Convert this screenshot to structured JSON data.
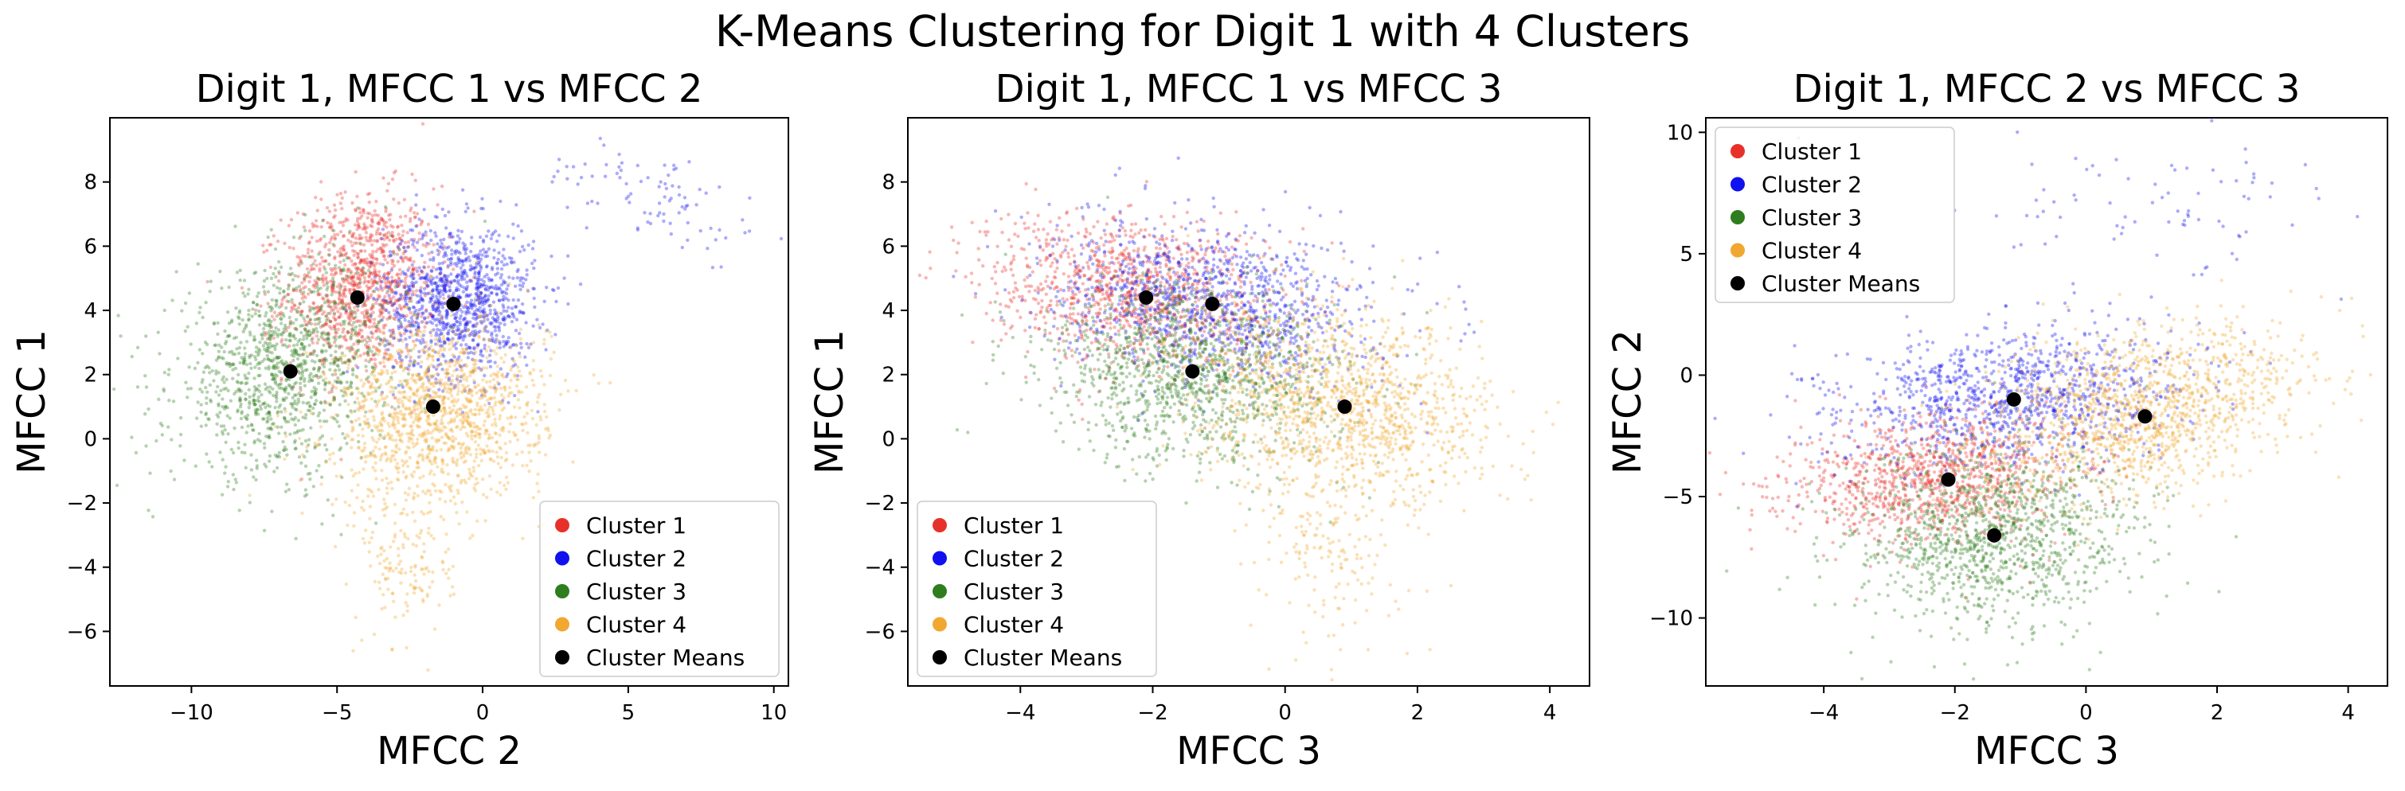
{
  "title": "K-Means Clustering for Digit 1 with 4 Clusters",
  "colors": {
    "cluster1": "#e8302a",
    "cluster2": "#1010f0",
    "cluster3": "#2e7d1e",
    "cluster4": "#f0a830",
    "means": "#000000"
  },
  "legend_labels": [
    "Cluster 1",
    "Cluster 2",
    "Cluster 3",
    "Cluster 4",
    "Cluster Means"
  ],
  "chart_data": [
    {
      "type": "scatter",
      "title": "Digit 1, MFCC 1 vs MFCC 2",
      "xlabel": "MFCC 2",
      "ylabel": "MFCC 1",
      "xlim": [
        -12.8,
        10.5
      ],
      "ylim": [
        -7.7,
        10.0
      ],
      "xticks": [
        -10,
        -5,
        0,
        5,
        10
      ],
      "yticks": [
        -6,
        -4,
        -2,
        0,
        2,
        4,
        6,
        8
      ],
      "legend_position": "lower right",
      "grid": false,
      "cluster_means": [
        {
          "name": "Cluster 1",
          "x": -4.3,
          "y": 4.4
        },
        {
          "name": "Cluster 2",
          "x": -1.0,
          "y": 4.2
        },
        {
          "name": "Cluster 3",
          "x": -6.6,
          "y": 2.1
        },
        {
          "name": "Cluster 4",
          "x": -1.7,
          "y": 1.0
        }
      ],
      "clouds": [
        {
          "name": "Cluster 1",
          "n": 1100,
          "mx": -4.2,
          "my": 4.8,
          "sx": 1.3,
          "sy": 1.4,
          "rho": 0.1
        },
        {
          "name": "Cluster 2",
          "n": 1100,
          "mx": -0.8,
          "my": 4.3,
          "sx": 1.3,
          "sy": 1.2,
          "rho": 0.0
        },
        {
          "name": "Cluster 2 tail",
          "n": 90,
          "mx": 6.0,
          "my": 7.5,
          "sx": 2.0,
          "sy": 1.0,
          "rho": -0.6
        },
        {
          "name": "Cluster 3",
          "n": 1200,
          "mx": -6.8,
          "my": 2.2,
          "sx": 1.9,
          "sy": 1.6,
          "rho": 0.2
        },
        {
          "name": "Cluster 4",
          "n": 1300,
          "mx": -1.5,
          "my": 0.8,
          "sx": 1.8,
          "sy": 1.4,
          "rho": 0.1
        },
        {
          "name": "Cluster 4 tail",
          "n": 150,
          "mx": -2.5,
          "my": -3.8,
          "sx": 0.8,
          "sy": 1.4,
          "rho": 0.0
        }
      ]
    },
    {
      "type": "scatter",
      "title": "Digit 1, MFCC 1 vs MFCC 3",
      "xlabel": "MFCC 3",
      "ylabel": "MFCC 1",
      "xlim": [
        -5.7,
        4.6
      ],
      "ylim": [
        -7.7,
        10.0
      ],
      "xticks": [
        -4,
        -2,
        0,
        2,
        4
      ],
      "yticks": [
        -6,
        -4,
        -2,
        0,
        2,
        4,
        6,
        8
      ],
      "legend_position": "lower left",
      "grid": false,
      "cluster_means": [
        {
          "name": "Cluster 1",
          "x": -2.1,
          "y": 4.4
        },
        {
          "name": "Cluster 2",
          "x": -1.1,
          "y": 4.2
        },
        {
          "name": "Cluster 3",
          "x": -1.4,
          "y": 2.1
        },
        {
          "name": "Cluster 4",
          "x": 0.9,
          "y": 1.0
        }
      ],
      "clouds": [
        {
          "name": "Cluster 1",
          "n": 1100,
          "mx": -2.3,
          "my": 4.6,
          "sx": 1.1,
          "sy": 1.2,
          "rho": -0.2
        },
        {
          "name": "Cluster 2",
          "n": 1100,
          "mx": -1.1,
          "my": 4.2,
          "sx": 1.2,
          "sy": 1.2,
          "rho": -0.2
        },
        {
          "name": "Cluster 3",
          "n": 1200,
          "mx": -1.4,
          "my": 2.0,
          "sx": 1.1,
          "sy": 1.4,
          "rho": -0.1
        },
        {
          "name": "Cluster 4",
          "n": 1300,
          "mx": 0.9,
          "my": 1.0,
          "sx": 1.1,
          "sy": 1.5,
          "rho": -0.2
        },
        {
          "name": "Cluster 4 tail",
          "n": 150,
          "mx": 0.7,
          "my": -3.5,
          "sx": 0.6,
          "sy": 1.6,
          "rho": 0.0
        }
      ]
    },
    {
      "type": "scatter",
      "title": "Digit 1, MFCC 2 vs MFCC 3",
      "xlabel": "MFCC 3",
      "ylabel": "MFCC 2",
      "xlim": [
        -5.8,
        4.6
      ],
      "ylim": [
        -12.8,
        10.6
      ],
      "xticks": [
        -4,
        -2,
        0,
        2,
        4
      ],
      "yticks": [
        -10,
        -5,
        0,
        5,
        10
      ],
      "legend_position": "upper left",
      "grid": false,
      "cluster_means": [
        {
          "name": "Cluster 1",
          "x": -2.1,
          "y": -4.3
        },
        {
          "name": "Cluster 2",
          "x": -1.1,
          "y": -1.0
        },
        {
          "name": "Cluster 3",
          "x": -1.4,
          "y": -6.6
        },
        {
          "name": "Cluster 4",
          "x": 0.9,
          "y": -1.7
        }
      ],
      "clouds": [
        {
          "name": "Cluster 1",
          "n": 1100,
          "mx": -2.3,
          "my": -4.2,
          "sx": 1.1,
          "sy": 1.3,
          "rho": 0.2
        },
        {
          "name": "Cluster 2",
          "n": 1100,
          "mx": -1.1,
          "my": -0.9,
          "sx": 1.3,
          "sy": 1.4,
          "rho": 0.2
        },
        {
          "name": "Cluster 2 tail",
          "n": 80,
          "mx": 0.8,
          "my": 7.0,
          "sx": 1.5,
          "sy": 1.6,
          "rho": 0.1
        },
        {
          "name": "Cluster 3",
          "n": 1200,
          "mx": -1.4,
          "my": -6.7,
          "sx": 1.1,
          "sy": 1.9,
          "rho": 0.1
        },
        {
          "name": "Cluster 4",
          "n": 1300,
          "mx": 0.9,
          "my": -1.5,
          "sx": 1.2,
          "sy": 1.8,
          "rho": 0.4
        }
      ]
    }
  ]
}
